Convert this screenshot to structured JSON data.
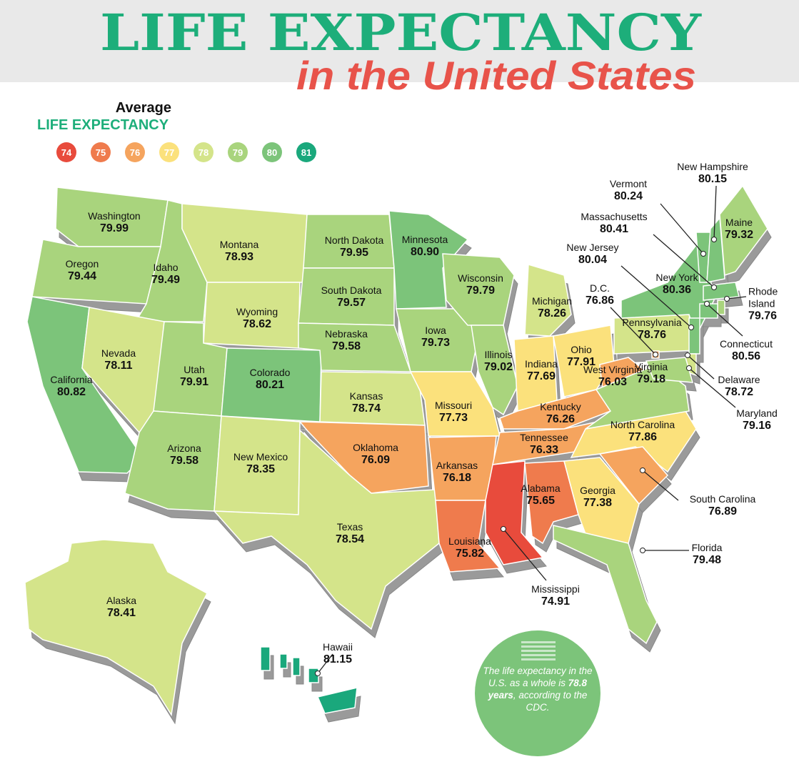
{
  "title": "LIFE EXPECTANCY",
  "subtitle": "in the United States",
  "legend": {
    "heading": "Average",
    "subheading": "LIFE EXPECTANCY",
    "levels": [
      {
        "value": 74,
        "color": "#e84b3c"
      },
      {
        "value": 75,
        "color": "#ef7b4d"
      },
      {
        "value": 76,
        "color": "#f5a45e"
      },
      {
        "value": 77,
        "color": "#fbe17c"
      },
      {
        "value": 78,
        "color": "#d4e48a"
      },
      {
        "value": 79,
        "color": "#a9d47d"
      },
      {
        "value": 80,
        "color": "#7cc47a"
      },
      {
        "value": 81,
        "color": "#1aa87c"
      }
    ]
  },
  "states": [
    {
      "name": "Washington",
      "value": 79.99
    },
    {
      "name": "Oregon",
      "value": 79.44
    },
    {
      "name": "California",
      "value": 80.82
    },
    {
      "name": "Idaho",
      "value": 79.49
    },
    {
      "name": "Nevada",
      "value": 78.11
    },
    {
      "name": "Montana",
      "value": 78.93
    },
    {
      "name": "Wyoming",
      "value": 78.62
    },
    {
      "name": "Utah",
      "value": 79.91
    },
    {
      "name": "Arizona",
      "value": 79.58
    },
    {
      "name": "Colorado",
      "value": 80.21
    },
    {
      "name": "New Mexico",
      "value": 78.35
    },
    {
      "name": "North Dakota",
      "value": 79.95
    },
    {
      "name": "South Dakota",
      "value": 79.57
    },
    {
      "name": "Nebraska",
      "value": 79.58
    },
    {
      "name": "Kansas",
      "value": 78.74
    },
    {
      "name": "Oklahoma",
      "value": 76.09
    },
    {
      "name": "Texas",
      "value": 78.54
    },
    {
      "name": "Minnesota",
      "value": 80.9,
      "label": "80.90"
    },
    {
      "name": "Iowa",
      "value": 79.73
    },
    {
      "name": "Missouri",
      "value": 77.73
    },
    {
      "name": "Arkansas",
      "value": 76.18
    },
    {
      "name": "Louisiana",
      "value": 75.82
    },
    {
      "name": "Wisconsin",
      "value": 79.79
    },
    {
      "name": "Illinois",
      "value": 79.02
    },
    {
      "name": "Michigan",
      "value": 78.26
    },
    {
      "name": "Indiana",
      "value": 77.69
    },
    {
      "name": "Ohio",
      "value": 77.91
    },
    {
      "name": "West Virginia",
      "value": 76.03
    },
    {
      "name": "Kentucky",
      "value": 76.26
    },
    {
      "name": "Tennessee",
      "value": 76.33
    },
    {
      "name": "Alabama",
      "value": 75.65
    },
    {
      "name": "Georgia",
      "value": 77.38
    },
    {
      "name": "North Carolina",
      "value": 77.86
    },
    {
      "name": "Virginia",
      "value": 79.18
    },
    {
      "name": "Pennsylvania",
      "value": 78.76
    },
    {
      "name": "New York",
      "value": 80.36
    },
    {
      "name": "Maine",
      "value": 79.32
    },
    {
      "name": "Alaska",
      "value": 78.41
    },
    {
      "name": "Vermont",
      "value": 80.24
    },
    {
      "name": "New Hampshire",
      "value": 80.15
    },
    {
      "name": "Massachusetts",
      "value": 80.41
    },
    {
      "name": "New Jersey",
      "value": 80.04
    },
    {
      "name": "D.C.",
      "value": 76.86
    },
    {
      "name": "Rhode Island",
      "value": 79.76
    },
    {
      "name": "Connecticut",
      "value": 80.56
    },
    {
      "name": "Delaware",
      "value": 78.72
    },
    {
      "name": "Maryland",
      "value": 79.16
    },
    {
      "name": "South Carolina",
      "value": 76.89
    },
    {
      "name": "Florida",
      "value": 79.48
    },
    {
      "name": "Mississippi",
      "value": 74.91
    },
    {
      "name": "Hawaii",
      "value": 81.15
    }
  ],
  "note": {
    "before": "The life expectancy in the U.S. as a whole is",
    "highlight": "78.8 years",
    "after": ", according to the CDC."
  }
}
